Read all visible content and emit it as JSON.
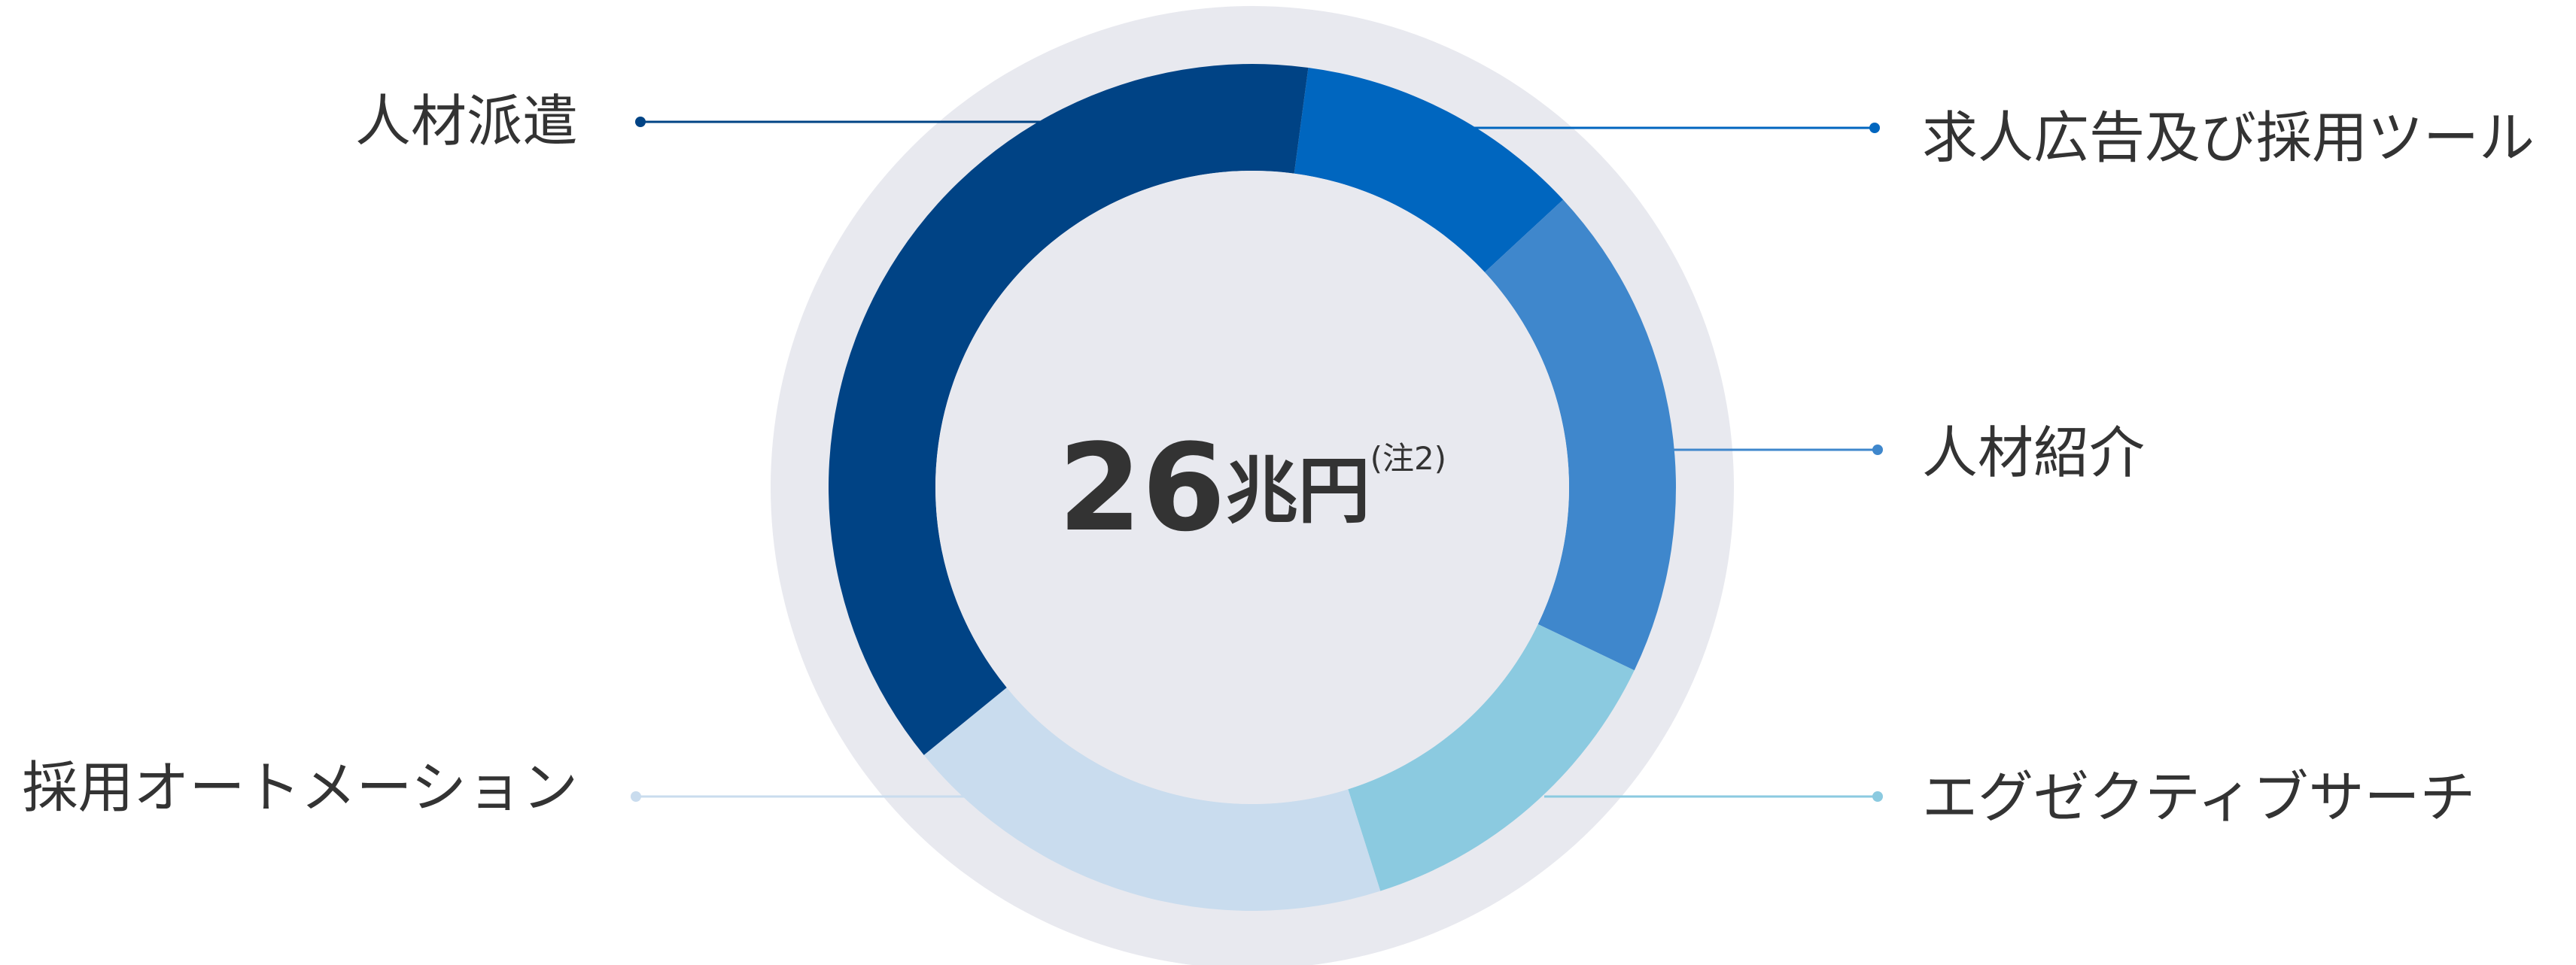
{
  "chart_data": {
    "type": "donut",
    "categories": [
      "求人広告及び採用ツール",
      "人材紹介",
      "エグゼクティブサーチ",
      "採用オートメーション",
      "人材派遣"
    ],
    "values": [
      11,
      19,
      13,
      19,
      38
    ],
    "colors": [
      "#0066bf",
      "#3f87cc",
      "#8bcae0",
      "#c9dcee",
      "#004385"
    ],
    "total": 26,
    "total_unit": "兆円",
    "note": "(注2)"
  }
}
